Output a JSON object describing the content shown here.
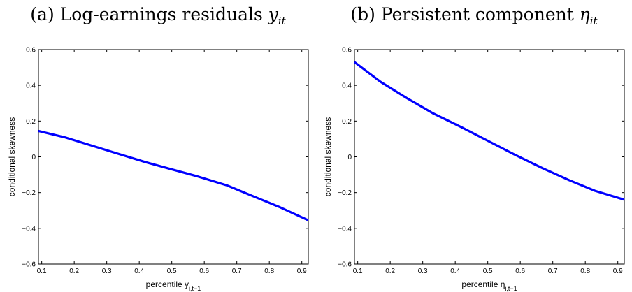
{
  "chart_data": [
    {
      "type": "line",
      "panel_letter": "(a)",
      "title": "Log-earnings residuals",
      "title_symbol": "y",
      "title_symbol_sub": "it",
      "xlabel": "percentile y",
      "xlabel_sub": "i,t−1",
      "ylabel": "conditional skewness",
      "xlim": [
        0.09,
        0.92
      ],
      "ylim": [
        -0.6,
        0.6
      ],
      "xticks": [
        0.1,
        0.2,
        0.3,
        0.4,
        0.5,
        0.6,
        0.7,
        0.8,
        0.9
      ],
      "yticks": [
        -0.6,
        -0.4,
        -0.2,
        0,
        0.2,
        0.4,
        0.6
      ],
      "xtick_labels": [
        "0.1",
        "0.2",
        "0.3",
        "0.4",
        "0.5",
        "0.6",
        "0.7",
        "0.8",
        "0.9"
      ],
      "ytick_labels": [
        "−0.6",
        "−0.4",
        "−0.2",
        "0",
        "0.2",
        "0.4",
        "0.6"
      ],
      "grid": false,
      "line_color": "#0000ff",
      "series": [
        {
          "x": [
            0.09,
            0.17,
            0.25,
            0.33,
            0.42,
            0.5,
            0.58,
            0.67,
            0.75,
            0.83,
            0.92
          ],
          "y": [
            0.145,
            0.11,
            0.065,
            0.02,
            -0.03,
            -0.07,
            -0.11,
            -0.16,
            -0.22,
            -0.28,
            -0.355
          ]
        }
      ]
    },
    {
      "type": "line",
      "panel_letter": "(b)",
      "title": "Persistent component",
      "title_symbol": "η",
      "title_symbol_sub": "it",
      "xlabel": "percentile η",
      "xlabel_sub": "i,t−1",
      "ylabel": "conditional skewness",
      "xlim": [
        0.09,
        0.92
      ],
      "ylim": [
        -0.6,
        0.6
      ],
      "xticks": [
        0.1,
        0.2,
        0.3,
        0.4,
        0.5,
        0.6,
        0.7,
        0.8,
        0.9
      ],
      "yticks": [
        -0.6,
        -0.4,
        -0.2,
        0,
        0.2,
        0.4,
        0.6
      ],
      "xtick_labels": [
        "0.1",
        "0.2",
        "0.3",
        "0.4",
        "0.5",
        "0.6",
        "0.7",
        "0.8",
        "0.9"
      ],
      "ytick_labels": [
        "−0.6",
        "−0.4",
        "−0.2",
        "0",
        "0.2",
        "0.4",
        "0.6"
      ],
      "grid": false,
      "line_color": "#0000ff",
      "series": [
        {
          "x": [
            0.09,
            0.17,
            0.25,
            0.33,
            0.42,
            0.5,
            0.58,
            0.67,
            0.75,
            0.83,
            0.92
          ],
          "y": [
            0.53,
            0.42,
            0.33,
            0.245,
            0.165,
            0.09,
            0.015,
            -0.065,
            -0.13,
            -0.19,
            -0.24
          ]
        }
      ]
    }
  ]
}
